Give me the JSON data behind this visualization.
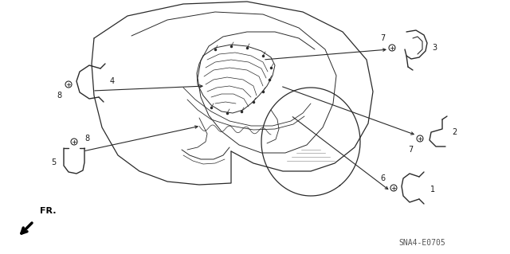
{
  "background_color": "#ffffff",
  "diagram_code": "SNA4-E0705",
  "fig_width": 6.4,
  "fig_height": 3.19,
  "dpi": 100,
  "line_color": "#2a2a2a",
  "text_color": "#1a1a1a"
}
